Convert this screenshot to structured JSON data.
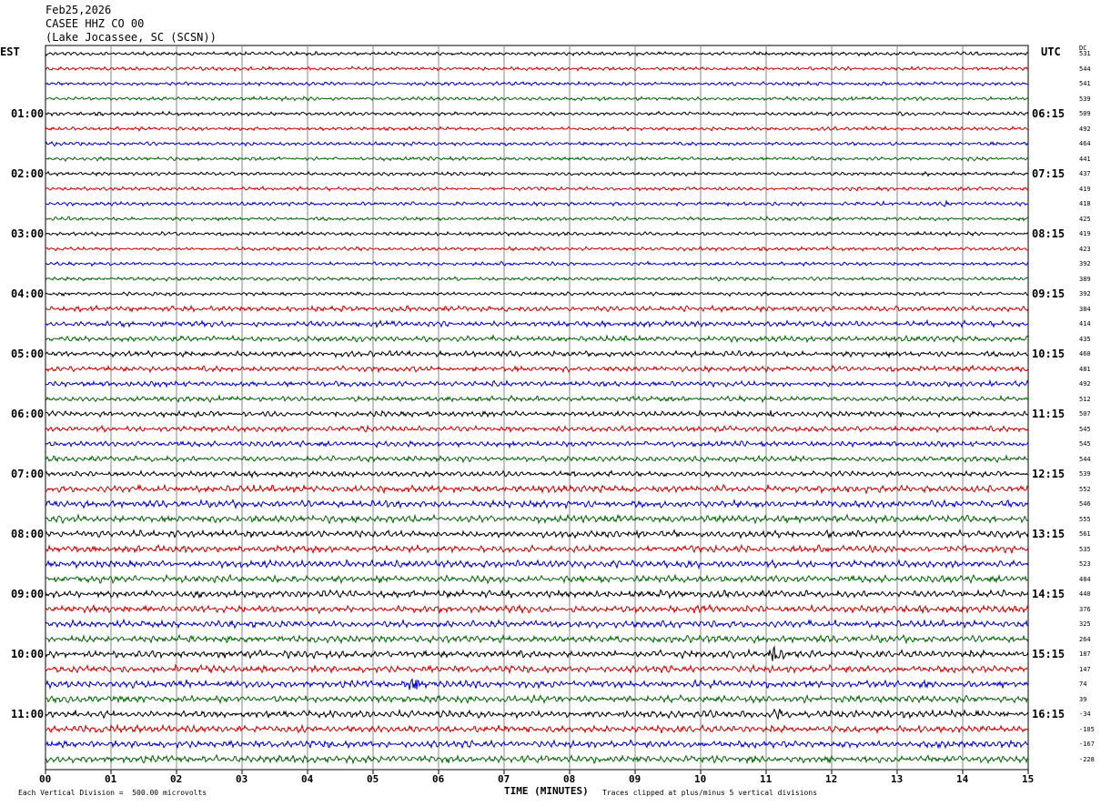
{
  "header": {
    "date": "Feb25,2026",
    "station": "CASEE HHZ CO 00",
    "location": "(Lake Jocassee, SC (SCSN))"
  },
  "left_timezone": "EST",
  "right_timezone": "UTC",
  "dc_label": "DC",
  "footer": {
    "scale_note": "Each Vertical Division =  500.00 microvolts",
    "clip_note": "Traces clipped at plus/minus 5 vertical divisions"
  },
  "colors": {
    "traces": [
      "#000000",
      "#cc0000",
      "#0000cc",
      "#006400"
    ],
    "grid": "#888888"
  },
  "chart_data": {
    "type": "line",
    "title": "",
    "xlabel": "TIME (MINUTES)",
    "x_ticks": [
      "00",
      "01",
      "02",
      "03",
      "04",
      "05",
      "06",
      "07",
      "08",
      "09",
      "10",
      "11",
      "12",
      "13",
      "14",
      "15"
    ],
    "xlim": [
      0,
      15
    ],
    "left_labels": [
      "01:00",
      "02:00",
      "03:00",
      "04:00",
      "05:00",
      "06:00",
      "07:00",
      "08:00",
      "09:00",
      "10:00",
      "11:00"
    ],
    "right_labels": [
      "06:15",
      "07:15",
      "08:15",
      "09:15",
      "10:15",
      "11:15",
      "12:15",
      "13:15",
      "14:15",
      "15:15",
      "16:15"
    ],
    "dc_offsets": [
      "531",
      "544",
      "541",
      "539",
      "509",
      "492",
      "464",
      "441",
      "437",
      "419",
      "418",
      "425",
      "419",
      "423",
      "392",
      "389",
      "392",
      "384",
      "414",
      "435",
      "460",
      "481",
      "492",
      "512",
      "507",
      "545",
      "545",
      "544",
      "539",
      "552",
      "546",
      "555",
      "561",
      "535",
      "523",
      "484",
      "440",
      "376",
      "325",
      "264",
      "187",
      "147",
      "74",
      "39",
      "-34",
      "-105",
      "-167",
      "-228"
    ],
    "trace_count": 48,
    "traces_per_hour": 4,
    "events": [
      {
        "trace": 40,
        "start_min": 11.0,
        "end_min": 11.9,
        "amp": 12
      },
      {
        "trace": 42,
        "start_min": 5.5,
        "end_min": 6.3,
        "amp": 14
      },
      {
        "trace": 44,
        "start_min": 11.1,
        "end_min": 11.6,
        "amp": 9
      },
      {
        "trace": 24,
        "start_min": 11.0,
        "end_min": 11.6,
        "amp": 4
      },
      {
        "trace": 24,
        "start_min": 13.0,
        "end_min": 13.6,
        "amp": 4
      },
      {
        "trace": 10,
        "start_min": 13.7,
        "end_min": 13.9,
        "amp": 5
      }
    ]
  }
}
